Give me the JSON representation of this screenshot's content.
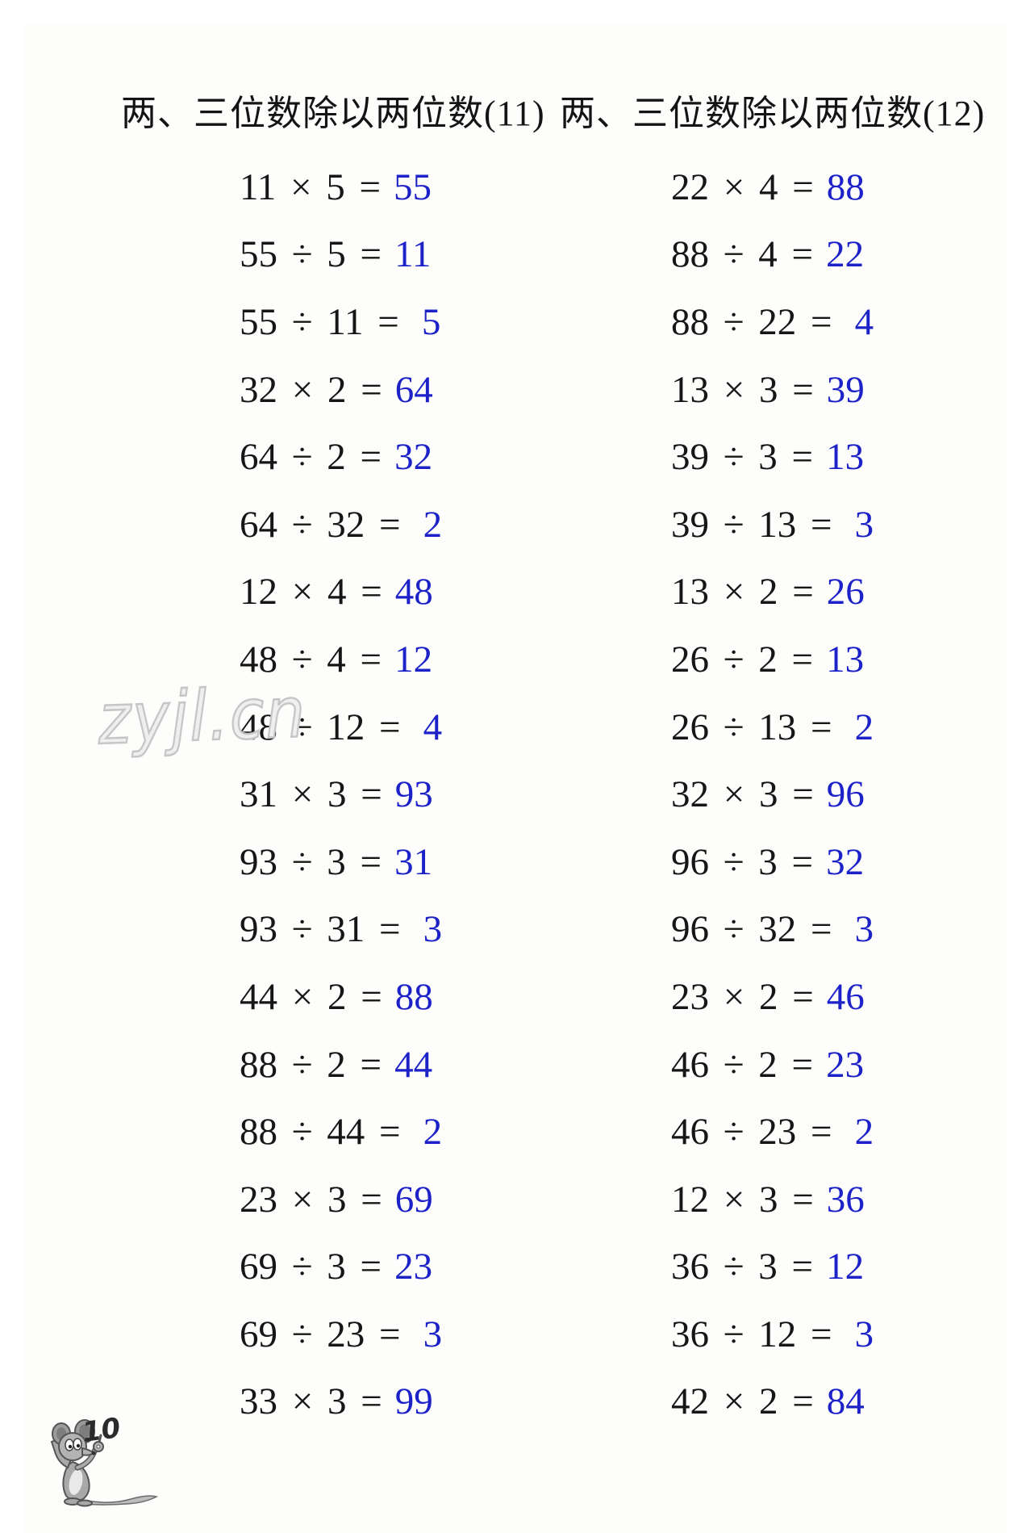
{
  "worksheet": {
    "watermark": "zyjl.cn",
    "page_number": "10",
    "colors": {
      "answer_blue": "#1c22c8",
      "ink_black": "#161616",
      "watermark_gray": "#c6c6c6"
    },
    "columns": [
      {
        "title": "两、三位数除以两位数(11)",
        "problems": [
          {
            "expr": "11 × 5 =",
            "ans": "55"
          },
          {
            "expr": "55 ÷ 5 =",
            "ans": "11"
          },
          {
            "expr": "55 ÷ 11 =",
            "ans": "5"
          },
          {
            "expr": "32 × 2 =",
            "ans": "64"
          },
          {
            "expr": "64 ÷ 2 =",
            "ans": "32"
          },
          {
            "expr": "64 ÷ 32 =",
            "ans": "2"
          },
          {
            "expr": "12 × 4 =",
            "ans": "48"
          },
          {
            "expr": "48 ÷ 4 =",
            "ans": "12"
          },
          {
            "expr": "48 ÷ 12 =",
            "ans": "4"
          },
          {
            "expr": "31 × 3 =",
            "ans": "93"
          },
          {
            "expr": "93 ÷ 3 =",
            "ans": "31"
          },
          {
            "expr": "93 ÷ 31 =",
            "ans": "3"
          },
          {
            "expr": "44 × 2 =",
            "ans": "88"
          },
          {
            "expr": "88 ÷ 2 =",
            "ans": "44"
          },
          {
            "expr": "88 ÷ 44 =",
            "ans": "2"
          },
          {
            "expr": "23 × 3 =",
            "ans": "69"
          },
          {
            "expr": "69 ÷ 3 =",
            "ans": "23"
          },
          {
            "expr": "69 ÷ 23 =",
            "ans": "3"
          },
          {
            "expr": "33 × 3 =",
            "ans": "99"
          }
        ]
      },
      {
        "title": "两、三位数除以两位数(12)",
        "problems": [
          {
            "expr": "22 × 4 =",
            "ans": "88"
          },
          {
            "expr": "88 ÷ 4 =",
            "ans": "22"
          },
          {
            "expr": "88 ÷ 22 =",
            "ans": "4"
          },
          {
            "expr": "13 × 3 =",
            "ans": "39"
          },
          {
            "expr": "39 ÷ 3 =",
            "ans": "13"
          },
          {
            "expr": "39 ÷ 13 =",
            "ans": "3"
          },
          {
            "expr": "13 × 2 =",
            "ans": "26"
          },
          {
            "expr": "26 ÷ 2 =",
            "ans": "13"
          },
          {
            "expr": "26 ÷ 13 =",
            "ans": "2"
          },
          {
            "expr": "32 × 3 =",
            "ans": "96"
          },
          {
            "expr": "96 ÷ 3 =",
            "ans": "32"
          },
          {
            "expr": "96 ÷ 32 =",
            "ans": "3"
          },
          {
            "expr": "23 × 2 =",
            "ans": "46"
          },
          {
            "expr": "46 ÷ 2 =",
            "ans": "23"
          },
          {
            "expr": "46 ÷ 23 =",
            "ans": "2"
          },
          {
            "expr": "12 × 3 =",
            "ans": "36"
          },
          {
            "expr": "36 ÷ 3 =",
            "ans": "12"
          },
          {
            "expr": "36 ÷ 12 =",
            "ans": "3"
          },
          {
            "expr": "42 × 2 =",
            "ans": "84"
          }
        ]
      }
    ]
  }
}
